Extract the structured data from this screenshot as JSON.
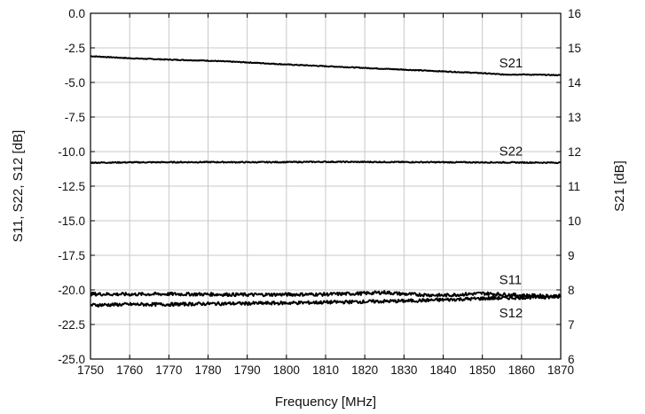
{
  "chart_data": {
    "type": "line",
    "title": "",
    "xlabel": "Frequency [MHz]",
    "ylabel_left": "S11, S22, S12 [dB]",
    "ylabel_right": "S21 [dB]",
    "xlim": [
      1750,
      1870
    ],
    "ylim_left": [
      -25.0,
      0.0
    ],
    "ylim_right": [
      6,
      16
    ],
    "grid": true,
    "x_ticks": [
      "1750",
      "1760",
      "1770",
      "1780",
      "1790",
      "1800",
      "1810",
      "1820",
      "1830",
      "1840",
      "1850",
      "1860",
      "1870"
    ],
    "y_left_ticks": [
      "0.0",
      "-2.5",
      "-5.0",
      "-7.5",
      "-10.0",
      "-12.5",
      "-15.0",
      "-17.5",
      "-20.0",
      "-22.5",
      "-25.0"
    ],
    "y_right_ticks": [
      "16",
      "15",
      "14",
      "13",
      "12",
      "11",
      "10",
      "9",
      "8",
      "7",
      "6"
    ],
    "series": [
      {
        "name": "S21",
        "axis": "right",
        "x": [
          1750,
          1760,
          1770,
          1780,
          1790,
          1800,
          1810,
          1820,
          1830,
          1840,
          1850,
          1855,
          1860,
          1870
        ],
        "values": [
          14.76,
          14.7,
          14.66,
          14.63,
          14.58,
          14.52,
          14.47,
          14.42,
          14.37,
          14.32,
          14.27,
          14.23,
          14.23,
          14.21
        ]
      },
      {
        "name": "S22",
        "axis": "left",
        "x": [
          1750,
          1760,
          1770,
          1780,
          1790,
          1800,
          1810,
          1820,
          1830,
          1840,
          1850,
          1860,
          1870
        ],
        "values": [
          -10.8,
          -10.78,
          -10.77,
          -10.76,
          -10.77,
          -10.76,
          -10.74,
          -10.75,
          -10.76,
          -10.77,
          -10.78,
          -10.79,
          -10.8
        ]
      },
      {
        "name": "S11",
        "axis": "left",
        "x": [
          1750,
          1760,
          1770,
          1780,
          1790,
          1800,
          1810,
          1820,
          1825,
          1830,
          1840,
          1850,
          1860,
          1870
        ],
        "values": [
          -20.3,
          -20.32,
          -20.3,
          -20.32,
          -20.35,
          -20.33,
          -20.32,
          -20.25,
          -20.18,
          -20.3,
          -20.4,
          -20.25,
          -20.4,
          -20.45
        ]
      },
      {
        "name": "S12",
        "axis": "left",
        "x": [
          1750,
          1760,
          1770,
          1780,
          1790,
          1800,
          1810,
          1820,
          1830,
          1840,
          1850,
          1860,
          1870
        ],
        "values": [
          -21.1,
          -21.05,
          -21.05,
          -21.0,
          -20.98,
          -20.95,
          -20.9,
          -20.85,
          -20.8,
          -20.72,
          -20.62,
          -20.55,
          -20.5
        ]
      }
    ]
  }
}
